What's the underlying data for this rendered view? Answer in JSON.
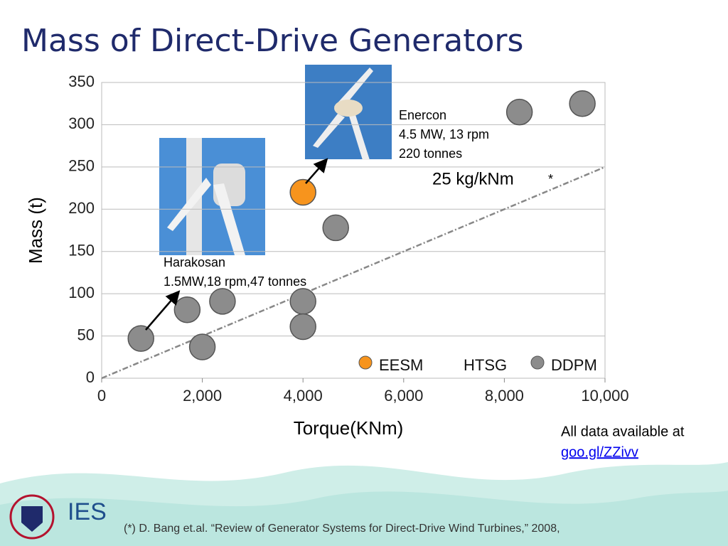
{
  "slide": {
    "title": "Mass of Direct-Drive Generators",
    "note": "All data available at",
    "link": "goo.gl/ZZivv",
    "footer": "(*) D.  Bang et.al. “Review  of  Generator  Systems  for  Direct-Drive  Wind  Turbines,” 2008,",
    "logo": "IES"
  },
  "chart_data": {
    "type": "scatter",
    "x_label": "Torque(KNm)",
    "y_label": "Mass (t)",
    "xlim": [
      0,
      10000
    ],
    "ylim": [
      0,
      350
    ],
    "xticks": [
      0,
      {
        "value": 2000,
        "label": "2,000"
      },
      {
        "value": 4000,
        "label": "4,000"
      },
      {
        "value": 6000,
        "label": "6,000"
      },
      {
        "value": 8000,
        "label": "8,000"
      },
      {
        "value": 10000,
        "label": "10,000"
      }
    ],
    "yticks": [
      0,
      50,
      100,
      150,
      200,
      250,
      300,
      350
    ],
    "grid": true,
    "legend": "lower right",
    "series": [
      {
        "name": "EESM",
        "color": "#f7941d",
        "x": [
          4000
        ],
        "values": [
          220
        ]
      },
      {
        "name": "HTSG",
        "x": [],
        "values": []
      },
      {
        "name": "DDPM",
        "color": "#8c8c8c",
        "x": [
          780,
          1700,
          2000,
          2400,
          4000,
          4000,
          4650,
          8300,
          9550
        ],
        "values": [
          47,
          81,
          37,
          91,
          91,
          61,
          178,
          315,
          325
        ]
      }
    ],
    "trendline": {
      "label": "25 kg/kNm",
      "marker": "*",
      "x": [
        0,
        10000
      ],
      "y": [
        0,
        250
      ]
    },
    "annotations": [
      {
        "lines": [
          "Enercon",
          "4.5 MW, 13 rpm",
          "220 tonnes"
        ]
      },
      {
        "lines": [
          "Harakosan",
          "1.5MW,18 rpm,47 tonnes"
        ]
      }
    ]
  }
}
